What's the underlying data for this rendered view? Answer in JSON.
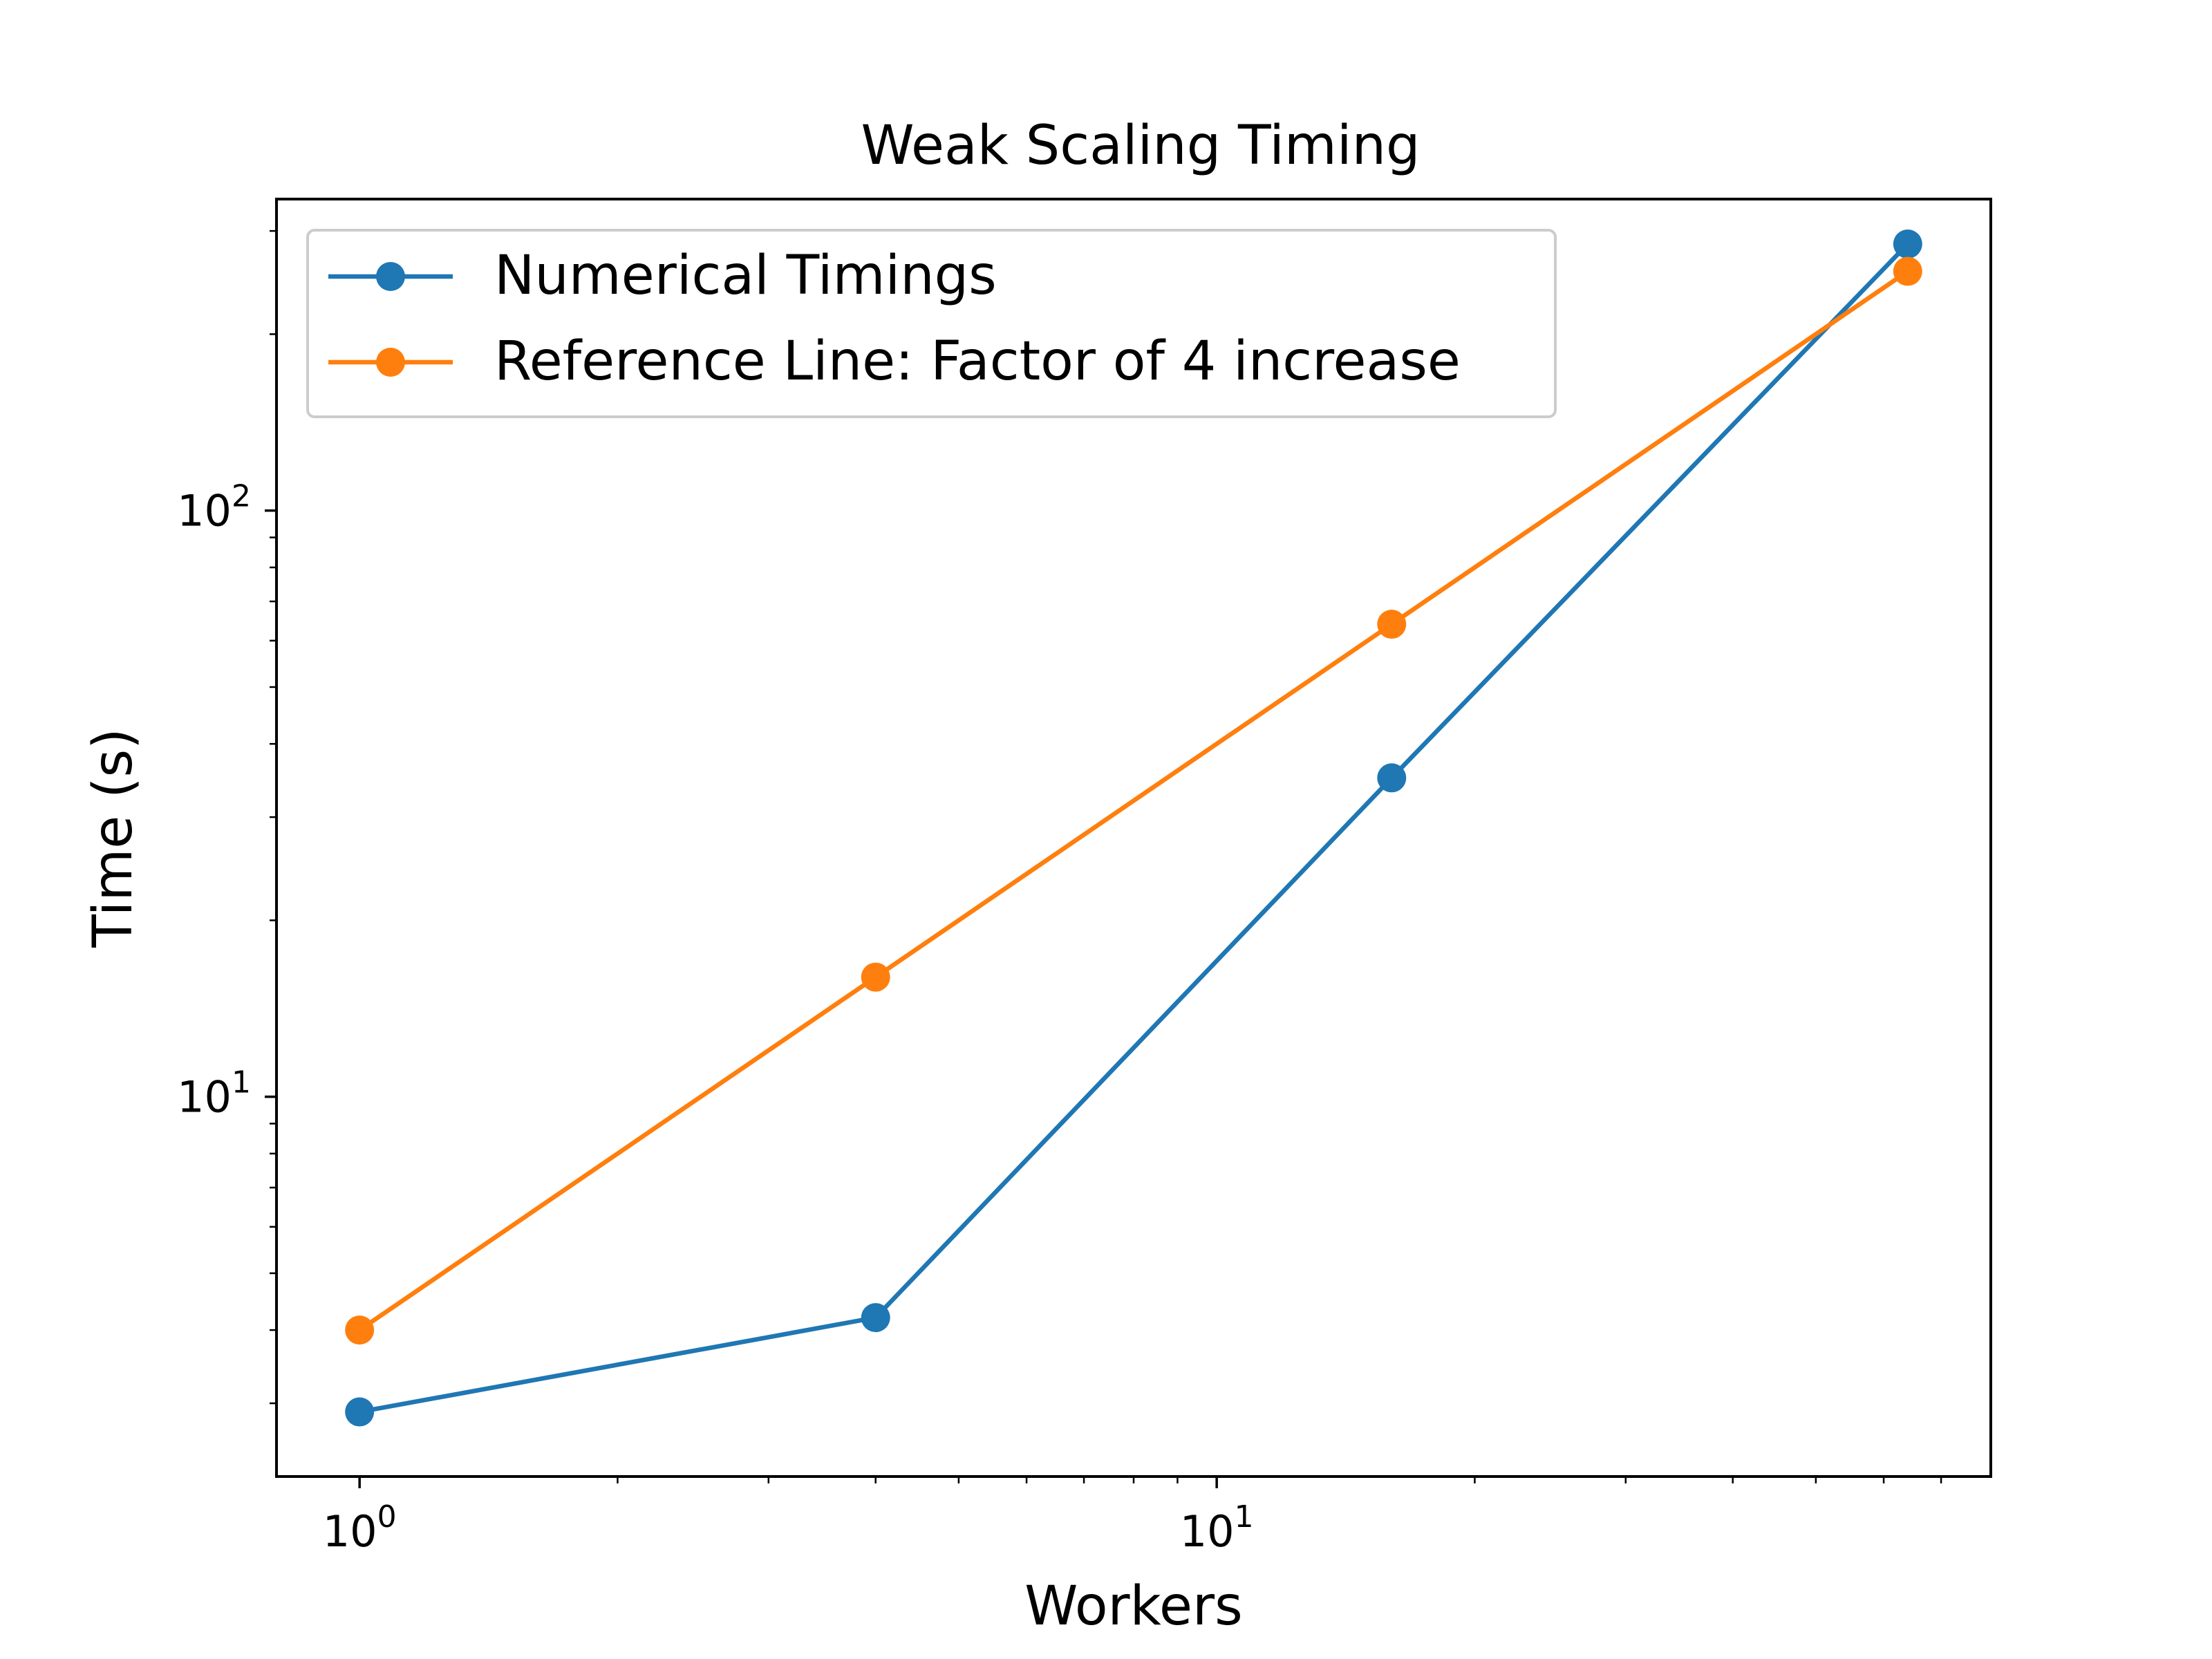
{
  "chart_data": {
    "type": "line",
    "title": "Weak Scaling Timing",
    "xlabel": "Workers",
    "ylabel": "Time (s)",
    "xscale": "log",
    "yscale": "log",
    "xlim": [
      0.8,
      80
    ],
    "ylim": [
      2.25,
      340
    ],
    "xticks": [
      {
        "value": 1,
        "base": "10",
        "exp": "0"
      },
      {
        "value": 10,
        "base": "10",
        "exp": "1"
      }
    ],
    "yticks": [
      {
        "value": 10,
        "base": "10",
        "exp": "1"
      },
      {
        "value": 100,
        "base": "10",
        "exp": "2"
      }
    ],
    "grid": false,
    "legend_position": "top-left",
    "series": [
      {
        "name": "Numerical Timings",
        "color": "#1f77b4",
        "marker": "circle",
        "x": [
          1,
          4,
          16,
          64
        ],
        "y": [
          2.9,
          4.2,
          35,
          285
        ]
      },
      {
        "name": "Reference Line: Factor of 4 increase",
        "color": "#ff7f0e",
        "marker": "circle",
        "x": [
          1,
          4,
          16,
          64
        ],
        "y": [
          4,
          16,
          64,
          256
        ]
      }
    ]
  }
}
